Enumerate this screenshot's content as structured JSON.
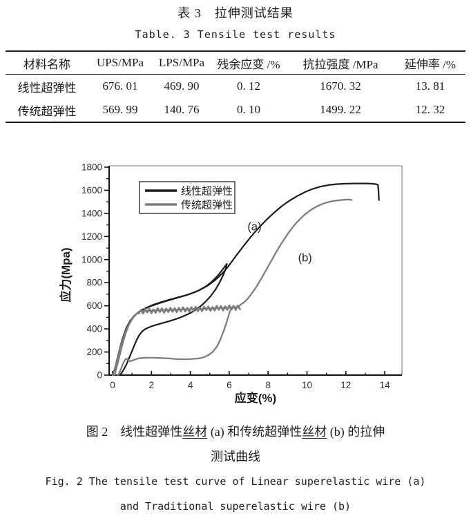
{
  "table_section": {
    "title_zh": "表 3　拉伸测试结果",
    "title_en": "Table. 3  Tensile test results",
    "columns": [
      "材料名称",
      "UPS/MPa",
      "LPS/MPa",
      "残余应变 /%",
      "抗拉强度 /MPa",
      "延伸率 /%"
    ],
    "rows": [
      [
        "线性超弹性",
        "676. 01",
        "469. 90",
        "0. 12",
        "1670. 32",
        "13. 81"
      ],
      [
        "传统超弹性",
        "569. 99",
        "140. 76",
        "0. 10",
        "1499. 22",
        "12. 32"
      ]
    ]
  },
  "figure": {
    "caption_zh_line1": "图 2　线性超弹性丝材 (a) 和传统超弹性丝材 (b) 的拉伸",
    "caption_zh_line2": "测试曲线",
    "caption_en_line1": "Fig. 2  The tensile test curve of Linear superelastic wire (a)",
    "caption_en_line2": "and Traditional superelastic wire (b)"
  },
  "chart_data": {
    "type": "line",
    "title": "",
    "xlabel": "应变(%)",
    "ylabel": "应力(Mpa)",
    "xlim": [
      0,
      15
    ],
    "ylim": [
      0,
      1800
    ],
    "xticks": [
      0,
      2,
      4,
      6,
      8,
      10,
      12,
      14
    ],
    "xticks_minor": [
      1,
      3,
      5,
      7,
      9,
      11,
      13
    ],
    "yticks": [
      0,
      200,
      400,
      600,
      800,
      1000,
      1200,
      1400,
      1600,
      1800
    ],
    "yticks_minor": [
      100,
      300,
      500,
      700,
      900,
      1100,
      1300,
      1500,
      1700
    ],
    "grid": false,
    "legend_position": "upper-left-inside",
    "colors": {
      "axis": "#111111",
      "box": "#7a7a7a",
      "tick_label": "#2e2e2e"
    },
    "legend": [
      {
        "label": "线性超弹性",
        "color": "#1b1b1b"
      },
      {
        "label": "传统超弹性",
        "color": "#7d7d7d"
      }
    ],
    "annotations": [
      {
        "text": "(a)",
        "x": 7.3,
        "y": 1290
      },
      {
        "text": "(b)",
        "x": 9.9,
        "y": 1020
      }
    ],
    "series": [
      {
        "name": "线性超弹性",
        "color": "#1b1b1b",
        "width": 2.2,
        "paths": {
          "cycle_load": [
            [
              0,
              0
            ],
            [
              0.12,
              60
            ],
            [
              0.3,
              180
            ],
            [
              0.5,
              310
            ],
            [
              0.7,
              405
            ],
            [
              0.9,
              468
            ],
            [
              1.1,
              512
            ],
            [
              1.3,
              542
            ],
            [
              1.5,
              562
            ],
            [
              1.7,
              578
            ],
            [
              2.0,
              600
            ],
            [
              2.4,
              622
            ],
            [
              2.8,
              643
            ],
            [
              3.2,
              663
            ],
            [
              3.6,
              682
            ],
            [
              4.0,
              703
            ],
            [
              4.4,
              730
            ],
            [
              4.8,
              768
            ],
            [
              5.1,
              808
            ],
            [
              5.4,
              858
            ],
            [
              5.65,
              912
            ],
            [
              5.82,
              950
            ],
            [
              5.88,
              962
            ]
          ],
          "cycle_unload": [
            [
              5.88,
              962
            ],
            [
              5.8,
              912
            ],
            [
              5.68,
              862
            ],
            [
              5.5,
              800
            ],
            [
              5.3,
              742
            ],
            [
              5.05,
              685
            ],
            [
              4.8,
              638
            ],
            [
              4.55,
              600
            ],
            [
              4.3,
              568
            ],
            [
              4.05,
              542
            ],
            [
              3.8,
              522
            ],
            [
              3.5,
              500
            ],
            [
              3.2,
              482
            ],
            [
              2.9,
              466
            ],
            [
              2.6,
              452
            ],
            [
              2.3,
              438
            ],
            [
              2.05,
              425
            ],
            [
              1.85,
              412
            ],
            [
              1.68,
              398
            ],
            [
              1.52,
              378
            ],
            [
              1.38,
              348
            ],
            [
              1.25,
              308
            ],
            [
              1.1,
              250
            ],
            [
              0.92,
              175
            ],
            [
              0.72,
              95
            ],
            [
              0.52,
              32
            ],
            [
              0.4,
              5
            ],
            [
              0.35,
              0
            ]
          ],
          "tensile": [
            [
              0,
              0
            ],
            [
              0.15,
              70
            ],
            [
              0.3,
              170
            ],
            [
              0.5,
              300
            ],
            [
              0.7,
              395
            ],
            [
              0.9,
              460
            ],
            [
              1.1,
              508
            ],
            [
              1.3,
              540
            ],
            [
              1.5,
              562
            ],
            [
              1.8,
              588
            ],
            [
              2.1,
              610
            ],
            [
              2.5,
              632
            ],
            [
              2.9,
              652
            ],
            [
              3.3,
              670
            ],
            [
              3.7,
              688
            ],
            [
              4.1,
              710
            ],
            [
              4.5,
              738
            ],
            [
              4.9,
              775
            ],
            [
              5.3,
              825
            ],
            [
              5.7,
              890
            ],
            [
              6.0,
              952
            ],
            [
              6.3,
              1020
            ],
            [
              6.7,
              1110
            ],
            [
              7.1,
              1195
            ],
            [
              7.5,
              1272
            ],
            [
              7.9,
              1342
            ],
            [
              8.3,
              1405
            ],
            [
              8.7,
              1462
            ],
            [
              9.1,
              1510
            ],
            [
              9.5,
              1550
            ],
            [
              9.9,
              1585
            ],
            [
              10.3,
              1612
            ],
            [
              10.7,
              1632
            ],
            [
              11.1,
              1645
            ],
            [
              11.5,
              1653
            ],
            [
              12.0,
              1657
            ],
            [
              12.5,
              1659
            ],
            [
              13.0,
              1659
            ],
            [
              13.3,
              1657
            ],
            [
              13.55,
              1653
            ],
            [
              13.65,
              1648
            ],
            [
              13.68,
              1595
            ],
            [
              13.7,
              1515
            ]
          ]
        }
      },
      {
        "name": "传统超弹性",
        "color": "#7d7d7d",
        "width": 2.3,
        "paths": {
          "cycle_load": [
            [
              0,
              0
            ],
            [
              0.12,
              55
            ],
            [
              0.3,
              170
            ],
            [
              0.5,
              295
            ],
            [
              0.7,
              390
            ],
            [
              0.9,
              455
            ],
            [
              1.05,
              495
            ],
            [
              1.2,
              525
            ],
            [
              1.35,
              548
            ]
          ],
          "cycle_unload": [
            [
              6.05,
              560
            ],
            [
              5.95,
              505
            ],
            [
              5.85,
              450
            ],
            [
              5.72,
              385
            ],
            [
              5.55,
              310
            ],
            [
              5.38,
              250
            ],
            [
              5.18,
              205
            ],
            [
              4.95,
              175
            ],
            [
              4.7,
              155
            ],
            [
              4.45,
              145
            ],
            [
              4.1,
              140
            ],
            [
              3.7,
              137
            ],
            [
              3.3,
              139
            ],
            [
              2.9,
              144
            ],
            [
              2.5,
              148
            ],
            [
              2.1,
              150
            ],
            [
              1.75,
              150
            ],
            [
              1.45,
              148
            ],
            [
              1.2,
              138
            ],
            [
              1.0,
              125
            ],
            [
              0.88,
              120
            ],
            [
              0.8,
              132
            ],
            [
              0.72,
              142
            ],
            [
              0.62,
              128
            ],
            [
              0.5,
              85
            ],
            [
              0.4,
              40
            ],
            [
              0.3,
              5
            ],
            [
              0.27,
              0
            ]
          ],
          "tensile": [
            [
              0.1,
              0
            ],
            [
              0.25,
              90
            ],
            [
              0.45,
              230
            ],
            [
              0.65,
              350
            ],
            [
              0.85,
              440
            ],
            [
              1.05,
              500
            ],
            [
              1.25,
              535
            ],
            [
              1.45,
              553
            ],
            [
              2.0,
              558
            ],
            [
              2.6,
              562
            ],
            [
              3.2,
              566
            ],
            [
              3.8,
              570
            ],
            [
              4.4,
              573
            ],
            [
              5.0,
              576
            ],
            [
              5.6,
              580
            ],
            [
              6.1,
              584
            ],
            [
              6.45,
              590
            ],
            [
              6.6,
              612
            ],
            [
              6.75,
              628
            ],
            [
              6.95,
              660
            ],
            [
              7.15,
              705
            ],
            [
              7.4,
              765
            ],
            [
              7.65,
              835
            ],
            [
              7.9,
              910
            ],
            [
              8.15,
              985
            ],
            [
              8.4,
              1060
            ],
            [
              8.65,
              1130
            ],
            [
              8.9,
              1195
            ],
            [
              9.15,
              1255
            ],
            [
              9.4,
              1308
            ],
            [
              9.65,
              1352
            ],
            [
              9.9,
              1392
            ],
            [
              10.15,
              1424
            ],
            [
              10.4,
              1450
            ],
            [
              10.7,
              1475
            ],
            [
              11.0,
              1493
            ],
            [
              11.3,
              1505
            ],
            [
              11.6,
              1513
            ],
            [
              11.9,
              1518
            ],
            [
              12.15,
              1520
            ],
            [
              12.3,
              1516
            ]
          ],
          "plateau_zigzag": {
            "x0": 1.35,
            "x1": 6.55,
            "y0": 552,
            "y1": 586,
            "amp": 20,
            "teeth": 48
          }
        }
      }
    ]
  }
}
